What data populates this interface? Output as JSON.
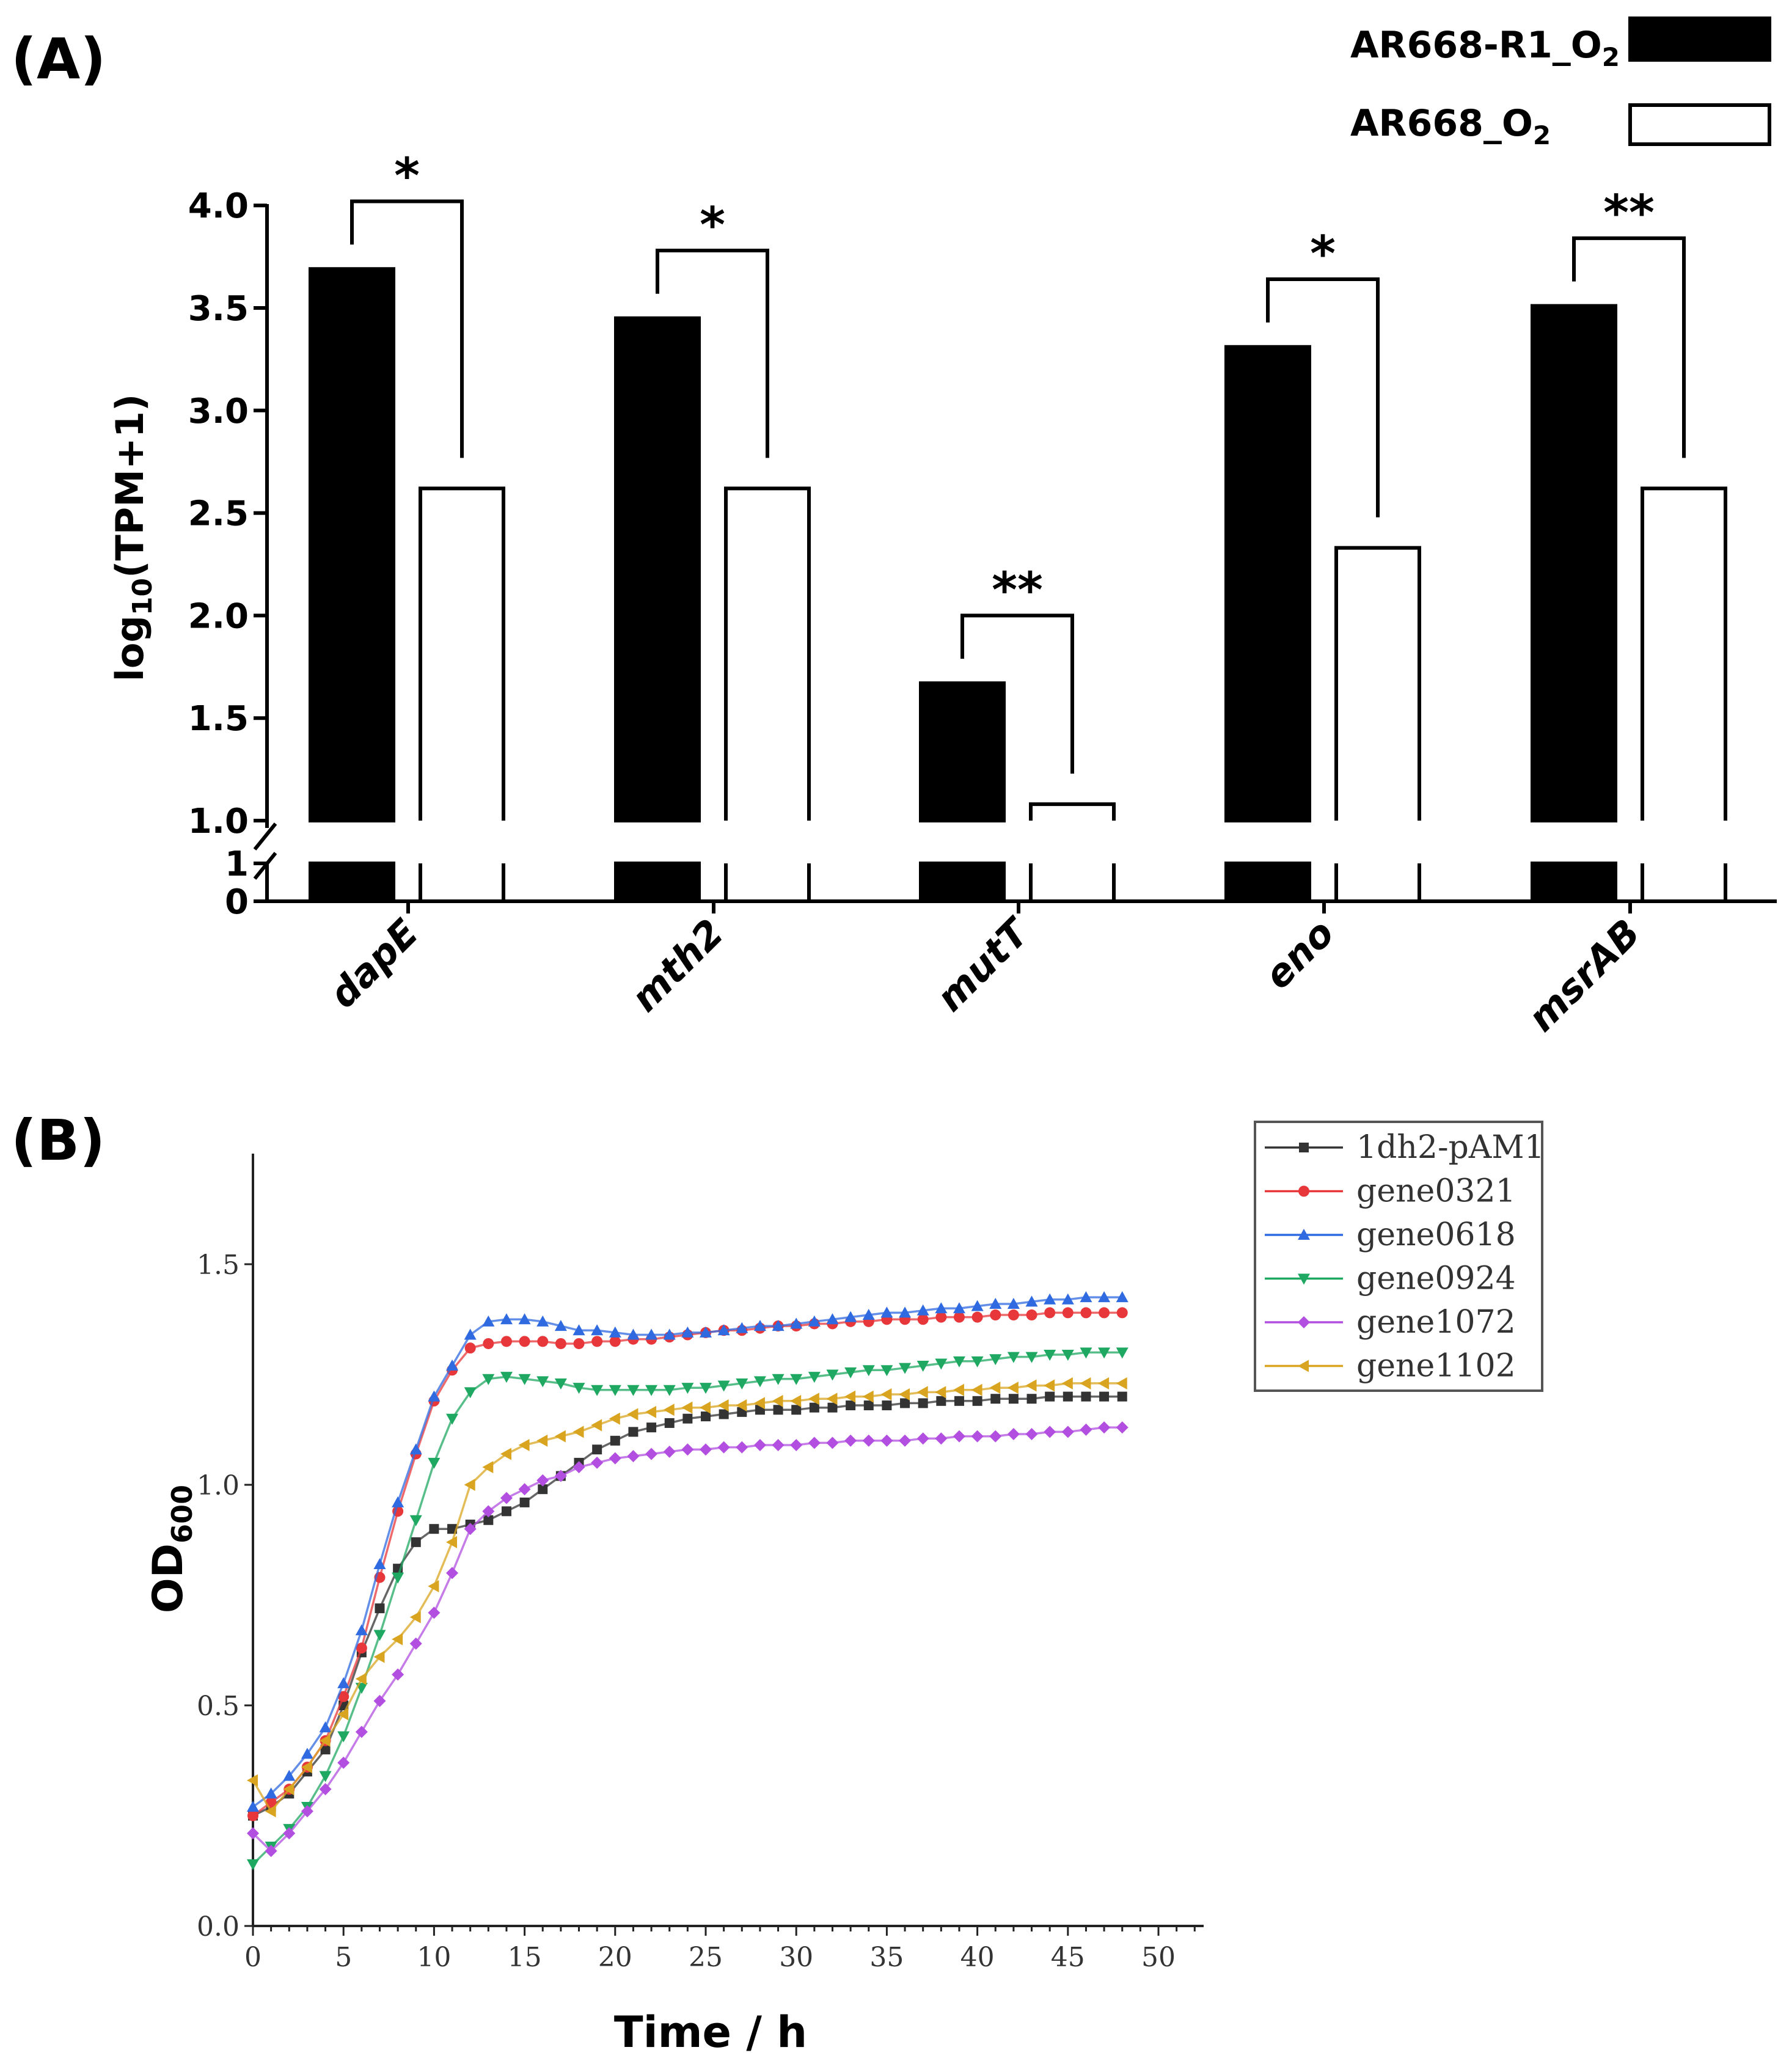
{
  "panel_a": {
    "label": "(A)",
    "legend": [
      {
        "prefix": "AR668-R1_O",
        "sub": "2",
        "fill": "#000000"
      },
      {
        "prefix": "AR668_O",
        "sub": "2",
        "fill": "#ffffff"
      }
    ],
    "ylabel": {
      "prefix": "log",
      "sub": "10",
      "suffix": "(TPM+1)"
    }
  },
  "panel_b": {
    "label": "(B)",
    "ylabel": {
      "prefix": "OD",
      "sub": "600"
    },
    "xlabel": "Time / h"
  },
  "chart_data": [
    {
      "type": "bar",
      "title": "",
      "categories": [
        "dapE",
        "mth2",
        "mutT",
        "eno",
        "msrAB"
      ],
      "series": [
        {
          "name": "AR668-R1_O2",
          "values": [
            3.69,
            3.45,
            1.67,
            3.31,
            3.51
          ],
          "color": "#000000"
        },
        {
          "name": "AR668_O2",
          "values": [
            2.62,
            2.62,
            1.08,
            2.33,
            2.62
          ],
          "color": "#ffffff"
        }
      ],
      "significance": [
        "*",
        "*",
        "**",
        "*",
        "**"
      ],
      "xlabel": "",
      "ylabel": "log10(TPM+1)",
      "yticks_upper": [
        "1.0",
        "1.5",
        "2.0",
        "2.5",
        "3.0",
        "3.5",
        "4.0"
      ],
      "yticks_lower": [
        "0",
        "1"
      ],
      "ylim": [
        0,
        4.0
      ],
      "axis_break": [
        1,
        1.0
      ],
      "legend_position": "top-right"
    },
    {
      "type": "line",
      "title": "",
      "xlabel": "Time / h",
      "ylabel": "OD600",
      "xlim": [
        0,
        50
      ],
      "ylim": [
        0,
        1.75
      ],
      "xticks": [
        "0",
        "5",
        "10",
        "15",
        "20",
        "25",
        "30",
        "35",
        "40",
        "45",
        "50"
      ],
      "yticks": [
        "0.0",
        "0.5",
        "1.0",
        "1.5"
      ],
      "x": [
        0,
        1,
        2,
        3,
        4,
        5,
        6,
        7,
        8,
        9,
        10,
        11,
        12,
        13,
        14,
        15,
        16,
        17,
        18,
        19,
        20,
        21,
        22,
        23,
        24,
        25,
        26,
        27,
        28,
        29,
        30,
        31,
        32,
        33,
        34,
        35,
        36,
        37,
        38,
        39,
        40,
        41,
        42,
        43,
        44,
        45,
        46,
        47,
        48
      ],
      "legend_position": "top-right",
      "series": [
        {
          "name": "1dh2-pAM1",
          "color": "#333333",
          "marker": "square",
          "values": [
            0.25,
            0.27,
            0.3,
            0.35,
            0.4,
            0.5,
            0.62,
            0.72,
            0.81,
            0.87,
            0.9,
            0.9,
            0.91,
            0.92,
            0.94,
            0.96,
            0.99,
            1.02,
            1.05,
            1.08,
            1.1,
            1.12,
            1.13,
            1.14,
            1.15,
            1.155,
            1.16,
            1.165,
            1.17,
            1.17,
            1.17,
            1.175,
            1.175,
            1.18,
            1.18,
            1.18,
            1.185,
            1.185,
            1.19,
            1.19,
            1.19,
            1.195,
            1.195,
            1.195,
            1.2,
            1.2,
            1.2,
            1.2,
            1.2
          ]
        },
        {
          "name": "gene0321",
          "color": "#e8373a",
          "marker": "circle",
          "values": [
            0.25,
            0.28,
            0.31,
            0.36,
            0.42,
            0.52,
            0.63,
            0.79,
            0.94,
            1.07,
            1.19,
            1.26,
            1.31,
            1.32,
            1.325,
            1.325,
            1.325,
            1.32,
            1.32,
            1.325,
            1.325,
            1.33,
            1.33,
            1.335,
            1.34,
            1.345,
            1.35,
            1.35,
            1.355,
            1.36,
            1.36,
            1.365,
            1.365,
            1.37,
            1.37,
            1.375,
            1.375,
            1.375,
            1.38,
            1.38,
            1.38,
            1.385,
            1.385,
            1.385,
            1.39,
            1.39,
            1.39,
            1.39,
            1.39
          ]
        },
        {
          "name": "gene0618",
          "color": "#2f6ae0",
          "marker": "triangle-up",
          "values": [
            0.27,
            0.3,
            0.34,
            0.39,
            0.45,
            0.55,
            0.67,
            0.82,
            0.96,
            1.08,
            1.2,
            1.27,
            1.34,
            1.37,
            1.375,
            1.375,
            1.37,
            1.36,
            1.35,
            1.35,
            1.345,
            1.34,
            1.34,
            1.34,
            1.345,
            1.345,
            1.35,
            1.355,
            1.36,
            1.36,
            1.365,
            1.37,
            1.375,
            1.38,
            1.385,
            1.39,
            1.39,
            1.395,
            1.4,
            1.4,
            1.405,
            1.41,
            1.41,
            1.415,
            1.42,
            1.42,
            1.425,
            1.425,
            1.425
          ]
        },
        {
          "name": "gene0924",
          "color": "#1fa862",
          "marker": "triangle-down",
          "values": [
            0.14,
            0.18,
            0.22,
            0.27,
            0.34,
            0.43,
            0.54,
            0.66,
            0.79,
            0.92,
            1.05,
            1.15,
            1.21,
            1.24,
            1.245,
            1.24,
            1.235,
            1.23,
            1.22,
            1.215,
            1.215,
            1.215,
            1.215,
            1.215,
            1.22,
            1.22,
            1.225,
            1.23,
            1.235,
            1.24,
            1.24,
            1.245,
            1.25,
            1.255,
            1.26,
            1.26,
            1.265,
            1.27,
            1.275,
            1.28,
            1.28,
            1.285,
            1.29,
            1.29,
            1.295,
            1.295,
            1.3,
            1.3,
            1.3
          ]
        },
        {
          "name": "gene1072",
          "color": "#b24fe0",
          "marker": "diamond",
          "values": [
            0.21,
            0.17,
            0.21,
            0.26,
            0.31,
            0.37,
            0.44,
            0.51,
            0.57,
            0.64,
            0.71,
            0.8,
            0.9,
            0.94,
            0.97,
            0.99,
            1.01,
            1.02,
            1.04,
            1.05,
            1.06,
            1.065,
            1.07,
            1.075,
            1.08,
            1.08,
            1.085,
            1.085,
            1.09,
            1.09,
            1.09,
            1.095,
            1.095,
            1.1,
            1.1,
            1.1,
            1.1,
            1.105,
            1.105,
            1.11,
            1.11,
            1.11,
            1.115,
            1.115,
            1.12,
            1.12,
            1.125,
            1.13,
            1.13
          ]
        },
        {
          "name": "gene1102",
          "color": "#d9a520",
          "marker": "triangle-left",
          "values": [
            0.33,
            0.26,
            0.31,
            0.36,
            0.42,
            0.48,
            0.56,
            0.61,
            0.65,
            0.7,
            0.77,
            0.87,
            1.0,
            1.04,
            1.07,
            1.09,
            1.1,
            1.11,
            1.12,
            1.135,
            1.15,
            1.16,
            1.165,
            1.17,
            1.175,
            1.175,
            1.18,
            1.18,
            1.185,
            1.19,
            1.19,
            1.195,
            1.195,
            1.2,
            1.2,
            1.205,
            1.205,
            1.21,
            1.21,
            1.215,
            1.215,
            1.22,
            1.22,
            1.225,
            1.225,
            1.23,
            1.23,
            1.23,
            1.23
          ]
        }
      ]
    }
  ]
}
